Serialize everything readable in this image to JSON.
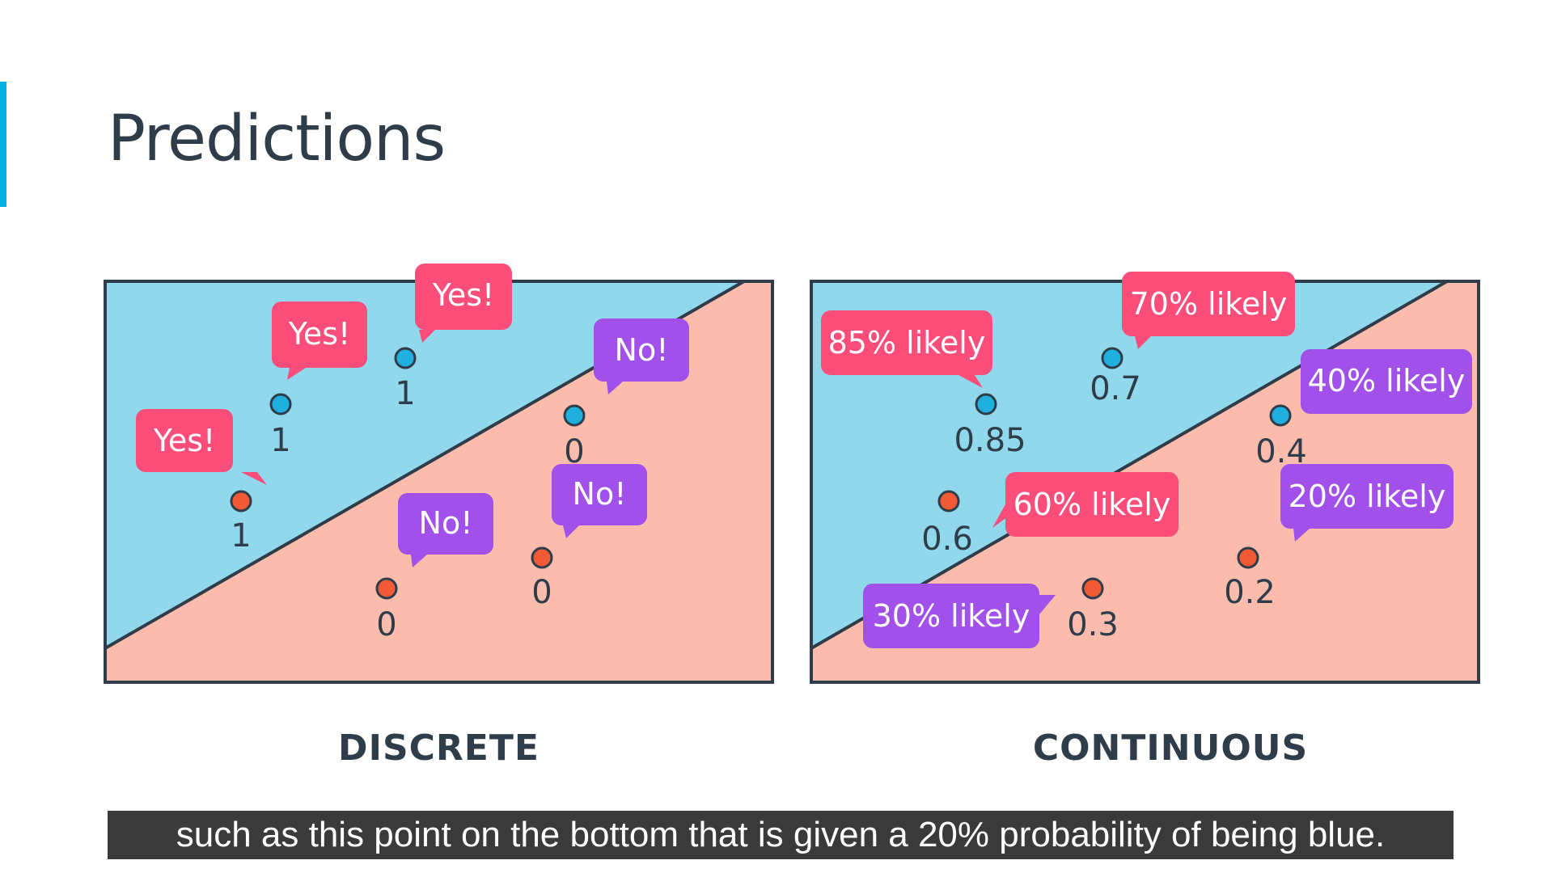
{
  "title": "Predictions",
  "subtitle": "such as this point on the bottom that is given a 20% probability of being blue.",
  "colors": {
    "accent": "#02b3e4",
    "blue_region": "#91d8ec",
    "red_region": "#fbbcad",
    "blue_point": "#1fb0e0",
    "red_point": "#f25a35",
    "bubble_pink": "#fa4d7a",
    "bubble_purple": "#a150ea",
    "frame": "#2e3d49"
  },
  "discrete": {
    "label": "DISCRETE",
    "points": [
      {
        "color": "blue",
        "value": "1",
        "bubble": "Yes!",
        "bubble_color": "pink"
      },
      {
        "color": "blue",
        "value": "1",
        "bubble": "Yes!",
        "bubble_color": "pink"
      },
      {
        "color": "red",
        "value": "1",
        "bubble": "Yes!",
        "bubble_color": "pink"
      },
      {
        "color": "blue",
        "value": "0",
        "bubble": "No!",
        "bubble_color": "purple"
      },
      {
        "color": "red",
        "value": "0",
        "bubble": "No!",
        "bubble_color": "purple"
      },
      {
        "color": "red",
        "value": "0",
        "bubble": "No!",
        "bubble_color": "purple"
      }
    ]
  },
  "continuous": {
    "label": "CONTINUOUS",
    "points": [
      {
        "color": "blue",
        "value": "0.85",
        "bubble": "85% likely",
        "bubble_color": "pink"
      },
      {
        "color": "blue",
        "value": "0.7",
        "bubble": "70% likely",
        "bubble_color": "pink"
      },
      {
        "color": "blue",
        "value": "0.4",
        "bubble": "40% likely",
        "bubble_color": "purple"
      },
      {
        "color": "red",
        "value": "0.6",
        "bubble": "60% likely",
        "bubble_color": "pink"
      },
      {
        "color": "red",
        "value": "0.3",
        "bubble": "30% likely",
        "bubble_color": "purple"
      },
      {
        "color": "red",
        "value": "0.2",
        "bubble": "20% likely",
        "bubble_color": "purple"
      }
    ]
  }
}
